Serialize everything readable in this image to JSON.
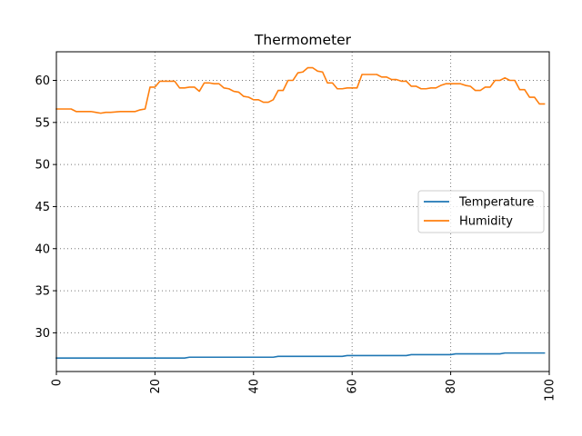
{
  "chart_data": {
    "type": "line",
    "title": "Thermometer",
    "xlabel": "",
    "ylabel": "",
    "xlim": [
      0,
      100
    ],
    "ylim": [
      25.4,
      63.4
    ],
    "x_ticks": [
      0,
      20,
      40,
      60,
      80,
      100
    ],
    "y_ticks": [
      30,
      35,
      40,
      45,
      50,
      55,
      60
    ],
    "x_tick_rotation": 90,
    "grid": true,
    "legend_position": "center-right",
    "series": [
      {
        "name": "Temperature",
        "color": "#1f77b4",
        "x": [
          0,
          10,
          20,
          26,
          27,
          35,
          44,
          45,
          58,
          59,
          71,
          72,
          80,
          81,
          90,
          91,
          99
        ],
        "y": [
          27.0,
          27.0,
          27.0,
          27.0,
          27.1,
          27.1,
          27.1,
          27.2,
          27.2,
          27.3,
          27.3,
          27.4,
          27.4,
          27.5,
          27.5,
          27.6,
          27.6
        ]
      },
      {
        "name": "Humidity",
        "color": "#ff7f0e",
        "x": [
          0,
          3,
          4,
          7,
          8,
          9,
          10,
          11,
          13,
          16,
          17,
          18,
          19,
          20,
          21,
          22,
          24,
          25,
          26,
          27,
          28,
          29,
          30,
          31,
          32,
          33,
          34,
          35,
          36,
          37,
          38,
          39,
          40,
          41,
          42,
          43,
          44,
          45,
          46,
          47,
          48,
          49,
          50,
          51,
          52,
          53,
          54,
          55,
          56,
          57,
          58,
          59,
          60,
          61,
          62,
          63,
          65,
          66,
          67,
          68,
          69,
          70,
          71,
          72,
          73,
          74,
          75,
          76,
          77,
          78,
          79,
          80,
          81,
          82,
          83,
          84,
          85,
          86,
          87,
          88,
          89,
          90,
          91,
          92,
          93,
          94,
          95,
          96,
          97,
          98,
          99
        ],
        "y": [
          56.6,
          56.6,
          56.3,
          56.3,
          56.2,
          56.1,
          56.2,
          56.2,
          56.3,
          56.3,
          56.5,
          56.6,
          59.2,
          59.2,
          59.9,
          59.9,
          59.9,
          59.1,
          59.1,
          59.2,
          59.2,
          58.7,
          59.7,
          59.7,
          59.6,
          59.6,
          59.1,
          59.0,
          58.7,
          58.6,
          58.1,
          58.0,
          57.7,
          57.7,
          57.4,
          57.4,
          57.7,
          58.8,
          58.8,
          60.0,
          60.0,
          60.9,
          61.0,
          61.5,
          61.5,
          61.1,
          61.0,
          59.7,
          59.7,
          59.0,
          59.0,
          59.1,
          59.1,
          59.1,
          60.7,
          60.7,
          60.7,
          60.4,
          60.4,
          60.1,
          60.1,
          59.9,
          59.9,
          59.3,
          59.3,
          59.0,
          59.0,
          59.1,
          59.1,
          59.4,
          59.6,
          59.6,
          59.6,
          59.6,
          59.4,
          59.3,
          58.8,
          58.8,
          59.2,
          59.2,
          60.0,
          60.0,
          60.3,
          60.0,
          60.0,
          58.9,
          58.9,
          58.0,
          58.0,
          57.2,
          57.2
        ]
      }
    ]
  }
}
